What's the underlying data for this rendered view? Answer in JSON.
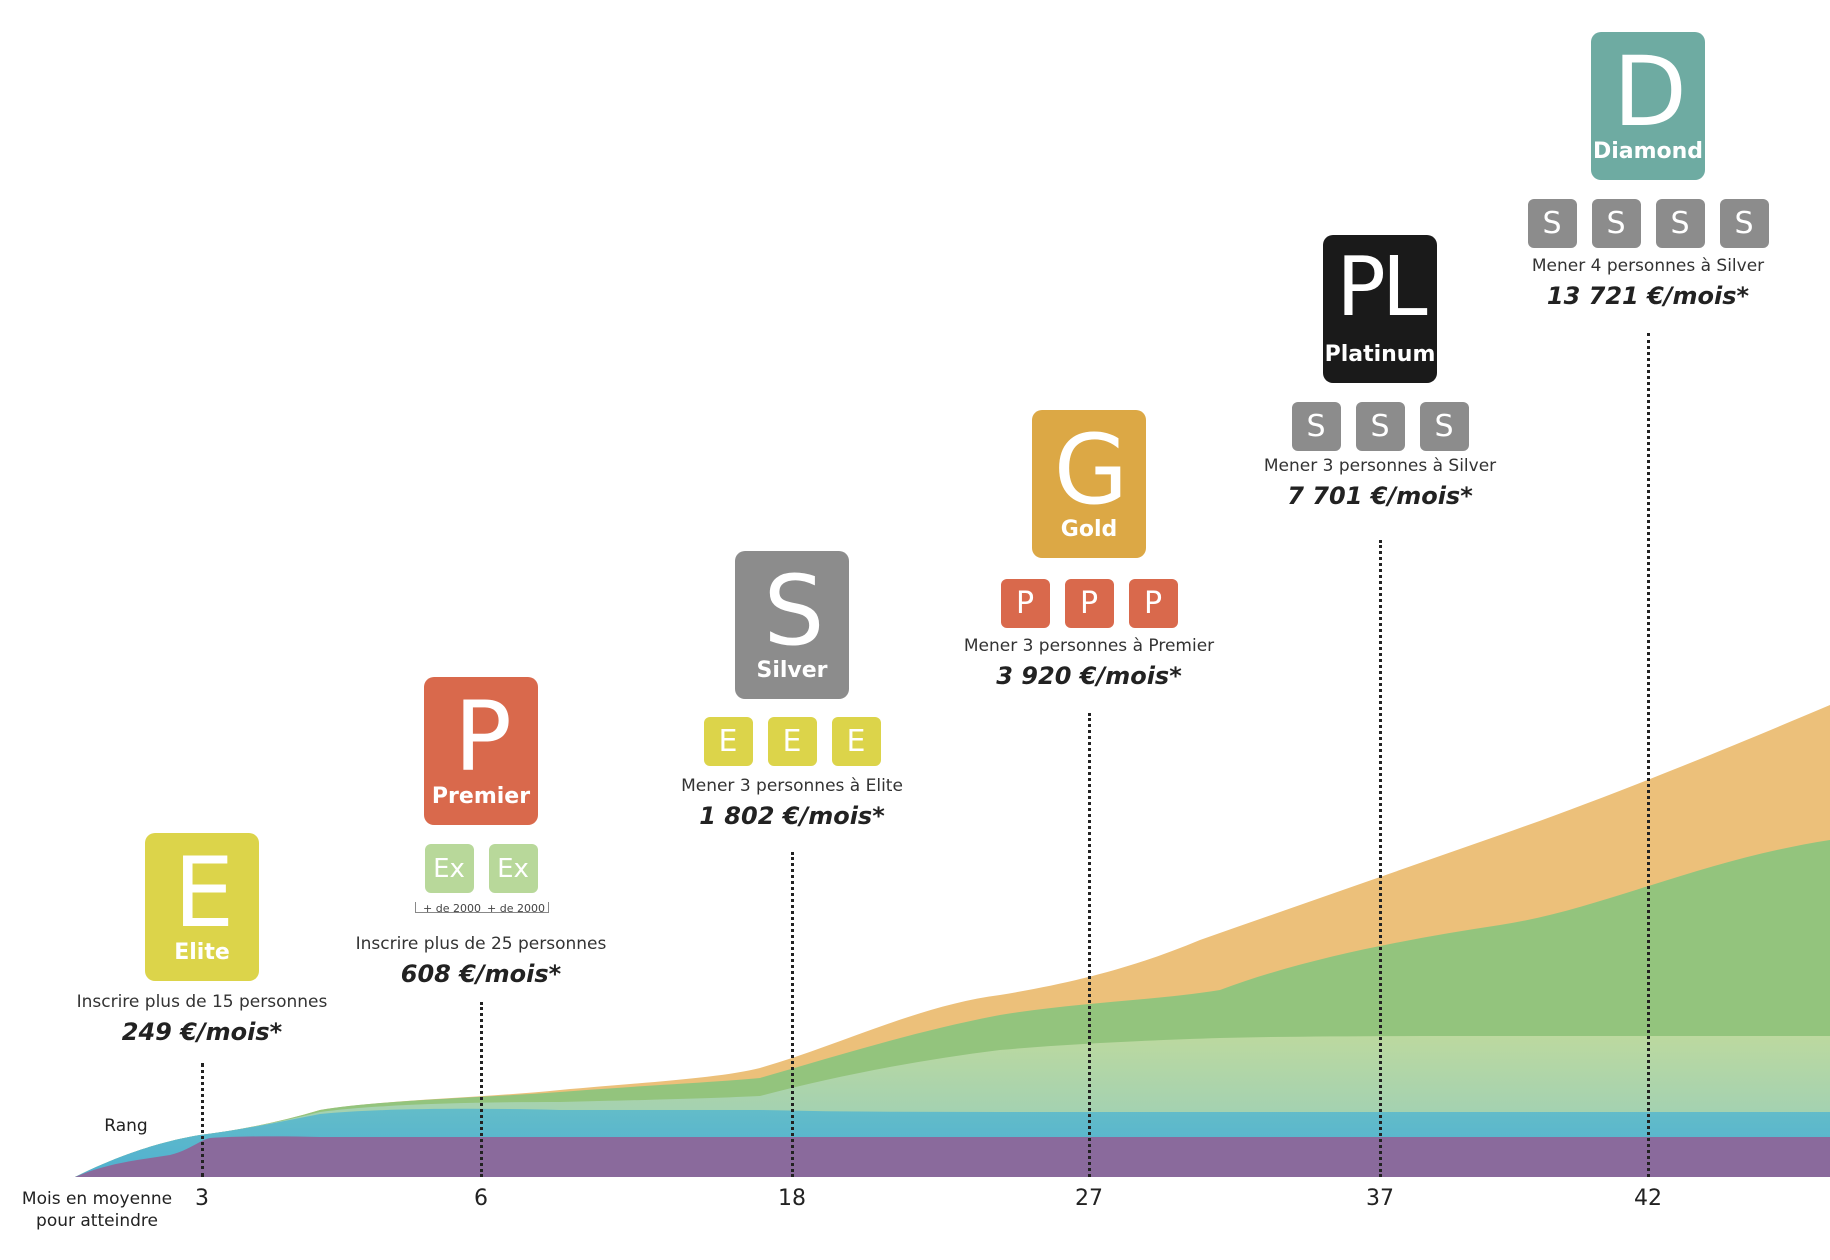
{
  "axis": {
    "rank_label": "Rang",
    "months_label_line1": "Mois en moyenne",
    "months_label_line2": "pour atteindre"
  },
  "colors": {
    "elite": "#dcd44a",
    "premier": "#d9694c",
    "silver": "#8c8c8c",
    "gold": "#dca845",
    "platinum": "#1a1a1a",
    "diamond": "#6eaba2",
    "executive": "#b8d89a",
    "area_purple": "#8a6a9c",
    "area_blue": "#5ab4cc",
    "area_light_green": "#b3d79a",
    "area_green": "#93c47d",
    "area_orange": "#ecc07a"
  },
  "ranks": [
    {
      "id": "elite",
      "letter": "E",
      "name": "Elite",
      "month": "3",
      "requirement": "Inscrire plus de 15 personnes",
      "income": "249 €/mois*",
      "mini_badges": []
    },
    {
      "id": "premier",
      "letter": "P",
      "name": "Premier",
      "month": "6",
      "requirement": "Inscrire plus de 25 personnes",
      "income": "608 €/mois*",
      "mini_badges": [
        "Ex",
        "Ex"
      ],
      "mini_notes": [
        "+ de 2000",
        "+ de 2000"
      ]
    },
    {
      "id": "silver",
      "letter": "S",
      "name": "Silver",
      "month": "18",
      "requirement": "Mener 3 personnes à Elite",
      "income": "1 802 €/mois*",
      "mini_badges": [
        "E",
        "E",
        "E"
      ]
    },
    {
      "id": "gold",
      "letter": "G",
      "name": "Gold",
      "month": "27",
      "requirement": "Mener 3 personnes à Premier",
      "income": "3 920 €/mois*",
      "mini_badges": [
        "P",
        "P",
        "P"
      ]
    },
    {
      "id": "platinum",
      "letter": "PL",
      "name": "Platinum",
      "month": "37",
      "requirement": "Mener 3 personnes à Silver",
      "income": "7 701 €/mois*",
      "mini_badges": [
        "S",
        "S",
        "S"
      ]
    },
    {
      "id": "diamond",
      "letter": "D",
      "name": "Diamond",
      "month": "42",
      "requirement": "Mener 4 personnes à Silver",
      "income": "13 721 €/mois*",
      "mini_badges": [
        "S",
        "S",
        "S",
        "S"
      ]
    }
  ]
}
